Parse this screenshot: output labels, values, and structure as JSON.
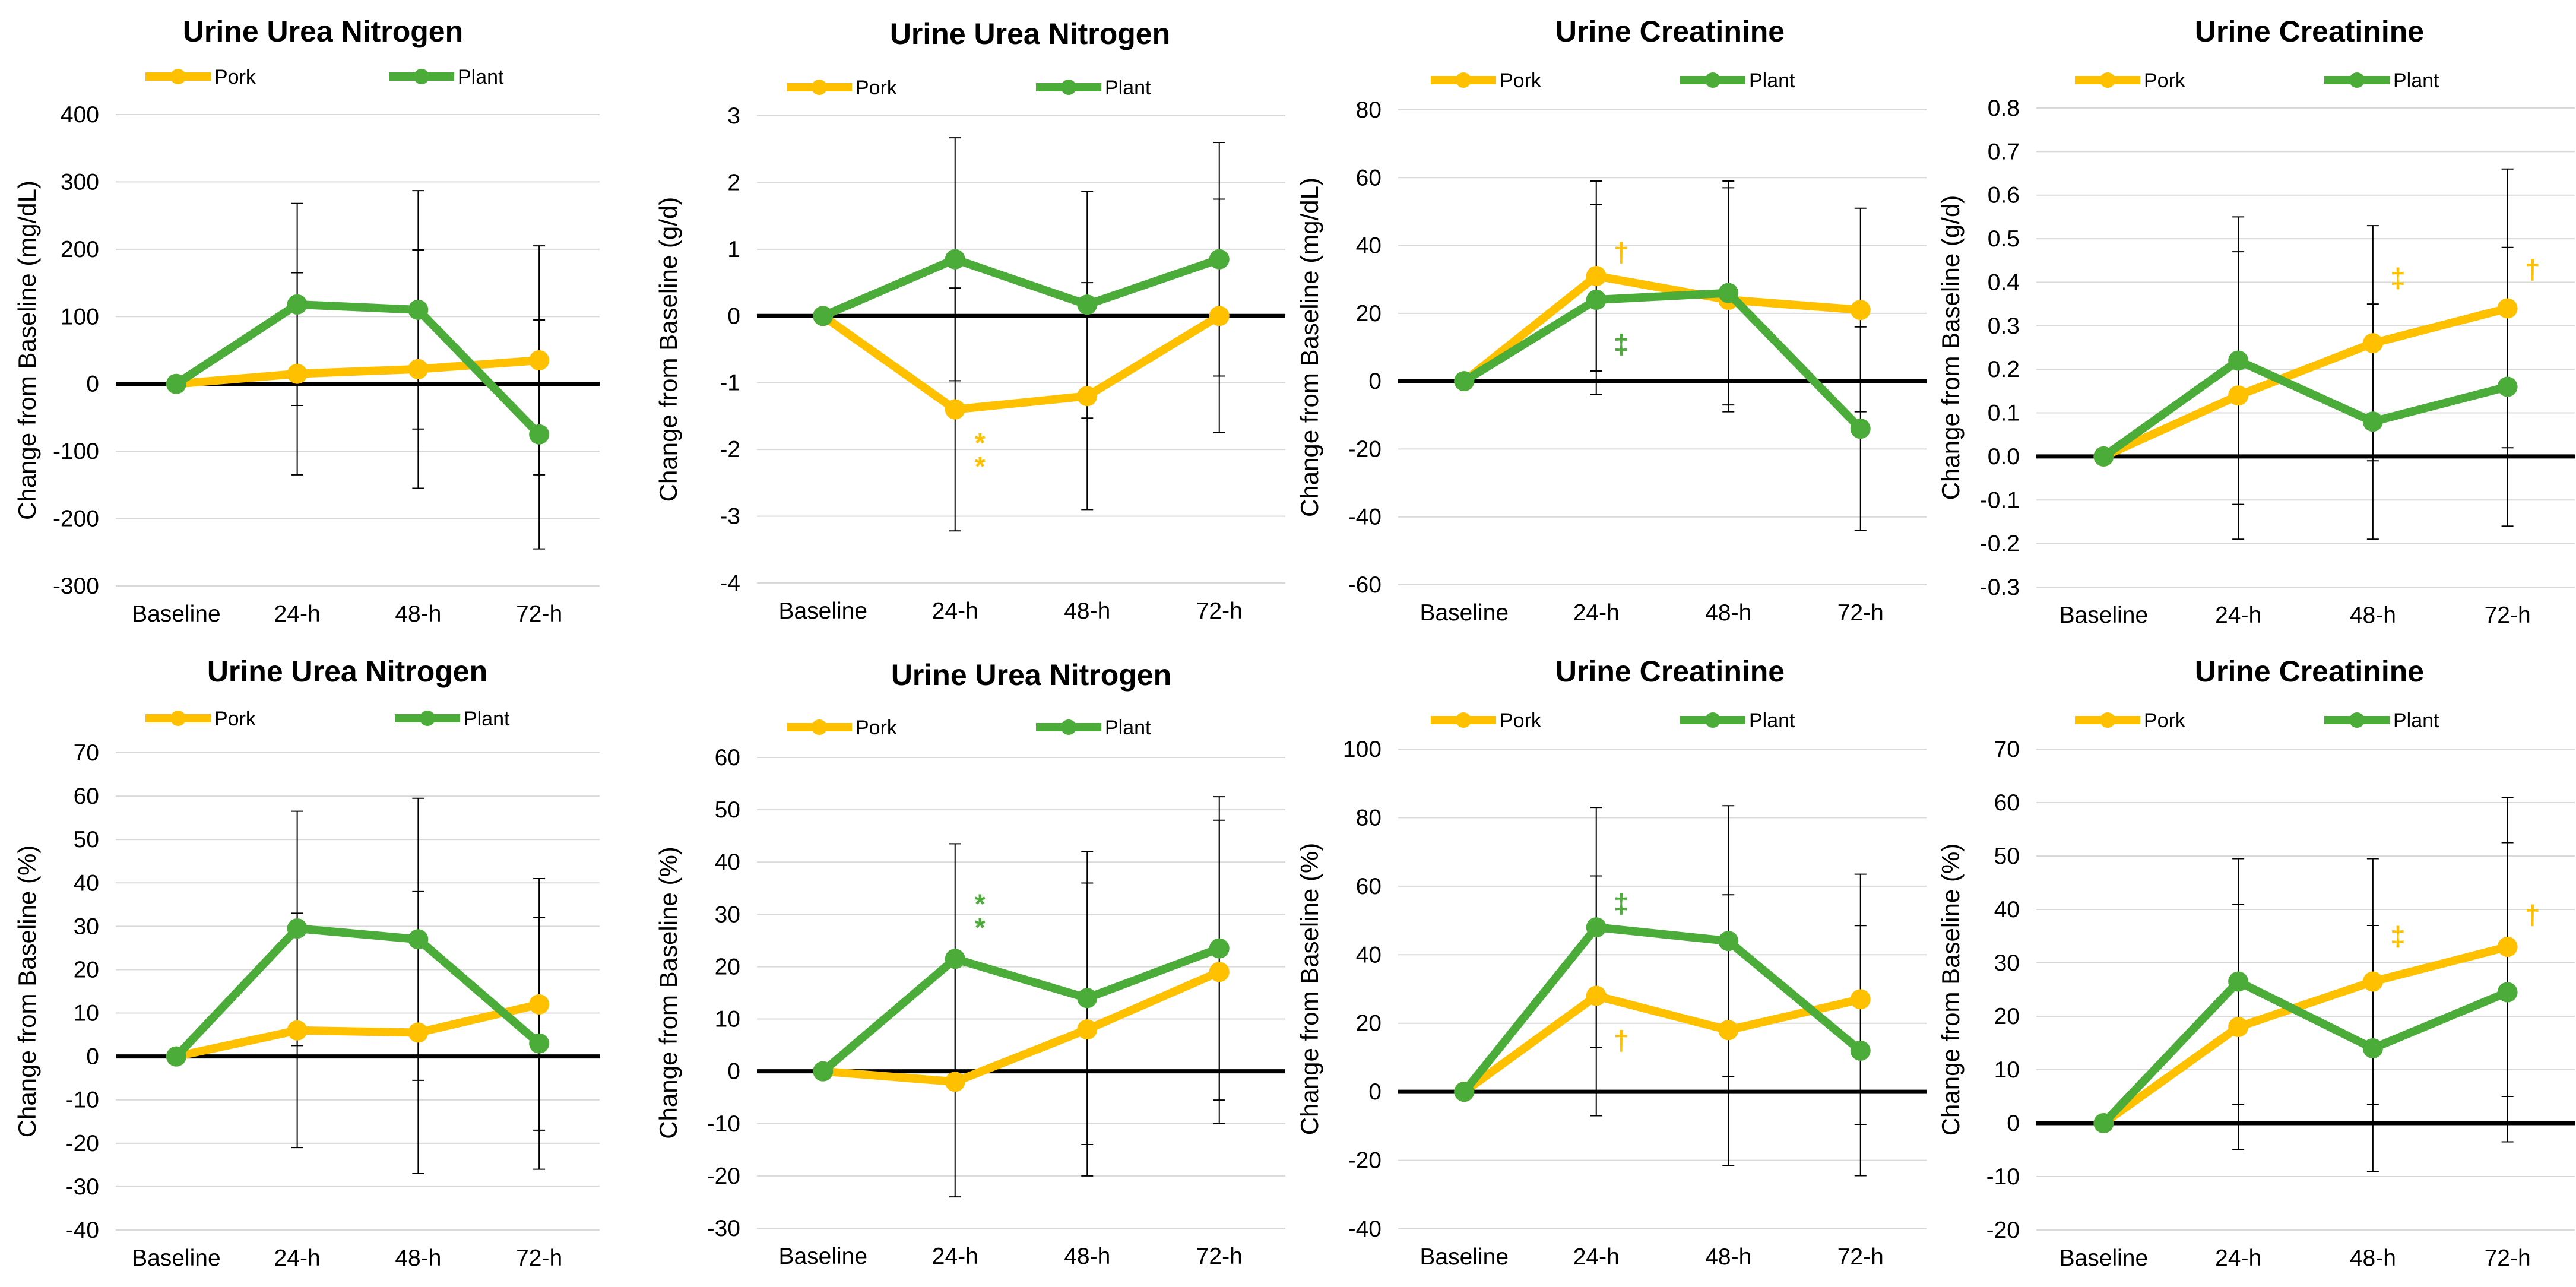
{
  "figure": {
    "colors": {
      "pork": "#FFC000",
      "plant": "#4CAC3A",
      "grid": "#D9D9D9",
      "errorbar": "#000000",
      "zero": "#000000"
    }
  },
  "chart_data": [
    {
      "type": "line",
      "title": "Urine Urea Nitrogen",
      "ylabel": "Change from Baseline (mg/dL)",
      "xlabel": "",
      "categories": [
        "Baseline",
        "24-h",
        "48-h",
        "72-h"
      ],
      "ylim": [
        -300,
        400
      ],
      "ystep": 100,
      "ytick_labels": [
        "-300",
        "-200",
        "-100",
        "0",
        "100",
        "200",
        "300",
        "400"
      ],
      "legend": [
        "Pork",
        "Plant"
      ],
      "series": [
        {
          "name": "Pork",
          "color": "#FFC000",
          "values": [
            0,
            15,
            22,
            35
          ],
          "error": [
            0,
            150,
            177,
            170
          ]
        },
        {
          "name": "Plant",
          "color": "#4CAC3A",
          "values": [
            0,
            118,
            110,
            -75
          ],
          "error": [
            0,
            150,
            177,
            170
          ]
        }
      ],
      "annotations": []
    },
    {
      "type": "line",
      "title": "Urine Urea Nitrogen",
      "ylabel": "Change from Baseline (g/d)",
      "xlabel": "",
      "categories": [
        "Baseline",
        "24-h",
        "48-h",
        "72-h"
      ],
      "ylim": [
        -4,
        3
      ],
      "ystep": 1,
      "ytick_labels": [
        "-4",
        "-3",
        "-2",
        "-1",
        "0",
        "1",
        "2",
        "3"
      ],
      "legend": [
        "Pork",
        "Plant"
      ],
      "series": [
        {
          "name": "Pork",
          "color": "#FFC000",
          "values": [
            0,
            -1.4,
            -1.2,
            0
          ],
          "error": [
            0,
            1.82,
            1.7,
            1.75
          ]
        },
        {
          "name": "Plant",
          "color": "#4CAC3A",
          "values": [
            0,
            0.85,
            0.17,
            0.85
          ],
          "error": [
            0,
            1.82,
            1.7,
            1.75
          ]
        }
      ],
      "annotations": [
        {
          "text": "*",
          "series": "Pork",
          "category": "24-h",
          "value": -1.9
        },
        {
          "text": "*",
          "series": "Pork",
          "category": "24-h",
          "value": -2.25
        }
      ]
    },
    {
      "type": "line",
      "title": "Urine Creatinine",
      "ylabel": "Change from Baseline (mg/dL)",
      "xlabel": "",
      "categories": [
        "Baseline",
        "24-h",
        "48-h",
        "72-h"
      ],
      "ylim": [
        -60,
        80
      ],
      "ystep": 20,
      "ytick_labels": [
        "-60",
        "-40",
        "-20",
        "0",
        "20",
        "40",
        "60",
        "80"
      ],
      "legend": [
        "Pork",
        "Plant"
      ],
      "series": [
        {
          "name": "Pork",
          "color": "#FFC000",
          "values": [
            0,
            31,
            24,
            21
          ],
          "error": [
            0,
            28,
            33,
            30
          ]
        },
        {
          "name": "Plant",
          "color": "#4CAC3A",
          "values": [
            0,
            24,
            26,
            -14
          ],
          "error": [
            0,
            28,
            33,
            30
          ]
        }
      ],
      "annotations": [
        {
          "text": "†",
          "series": "Pork",
          "category": "24-h",
          "value": 38
        },
        {
          "text": "‡",
          "series": "Plant",
          "category": "24-h",
          "value": 11
        }
      ]
    },
    {
      "type": "line",
      "title": "Urine Creatinine",
      "ylabel": "Change from Baseline (g/d)",
      "xlabel": "",
      "categories": [
        "Baseline",
        "24-h",
        "48-h",
        "72-h"
      ],
      "ylim": [
        -0.3,
        0.8
      ],
      "ystep": 0.1,
      "ytick_labels": [
        "-0.3",
        "-0.2",
        "-0.1",
        "0.0",
        "0.1",
        "0.2",
        "0.3",
        "0.4",
        "0.5",
        "0.6",
        "0.7",
        "0.8"
      ],
      "legend": [
        "Pork",
        "Plant"
      ],
      "series": [
        {
          "name": "Pork",
          "color": "#FFC000",
          "values": [
            0,
            0.14,
            0.26,
            0.34
          ],
          "error": [
            0,
            0.33,
            0.27,
            0.32
          ]
        },
        {
          "name": "Plant",
          "color": "#4CAC3A",
          "values": [
            0,
            0.22,
            0.08,
            0.16
          ],
          "error": [
            0,
            0.33,
            0.27,
            0.32
          ]
        }
      ],
      "annotations": [
        {
          "text": "‡",
          "series": "Pork",
          "category": "48-h",
          "value": 0.41
        },
        {
          "text": "†",
          "series": "Pork",
          "category": "72-h",
          "value": 0.43
        }
      ]
    },
    {
      "type": "line",
      "title": "Urine Urea Nitrogen",
      "ylabel": "Change from Baseline (%)",
      "xlabel": "",
      "categories": [
        "Baseline",
        "24-h",
        "48-h",
        "72-h"
      ],
      "ylim": [
        -40,
        70
      ],
      "ystep": 10,
      "ytick_labels": [
        "-40",
        "-30",
        "-20",
        "-10",
        "0",
        "10",
        "20",
        "30",
        "40",
        "50",
        "60",
        "70"
      ],
      "legend": [
        "Pork",
        "Plant"
      ],
      "series": [
        {
          "name": "Pork",
          "color": "#FFC000",
          "values": [
            0,
            6,
            5.5,
            12
          ],
          "error": [
            0,
            27,
            32.5,
            29
          ]
        },
        {
          "name": "Plant",
          "color": "#4CAC3A",
          "values": [
            0,
            29.5,
            27,
            3
          ],
          "error": [
            0,
            27,
            32.5,
            29
          ]
        }
      ],
      "annotations": []
    },
    {
      "type": "line",
      "title": "Urine Urea Nitrogen",
      "ylabel": "Change from Baseline (%)",
      "xlabel": "",
      "categories": [
        "Baseline",
        "24-h",
        "48-h",
        "72-h"
      ],
      "ylim": [
        -30,
        60
      ],
      "ystep": 10,
      "ytick_labels": [
        "-30",
        "-20",
        "-10",
        "0",
        "10",
        "20",
        "30",
        "40",
        "50",
        "60"
      ],
      "legend": [
        "Pork",
        "Plant"
      ],
      "series": [
        {
          "name": "Pork",
          "color": "#FFC000",
          "values": [
            0,
            -2,
            8,
            19
          ],
          "error": [
            0,
            22,
            28,
            29
          ]
        },
        {
          "name": "Plant",
          "color": "#4CAC3A",
          "values": [
            0,
            21.5,
            14,
            23.5
          ],
          "error": [
            0,
            22,
            28,
            29
          ]
        }
      ],
      "annotations": [
        {
          "text": "*",
          "series": "Plant",
          "category": "24-h",
          "value": 32
        },
        {
          "text": "*",
          "series": "Plant",
          "category": "24-h",
          "value": 27.5
        }
      ]
    },
    {
      "type": "line",
      "title": "Urine Creatinine",
      "ylabel": "Change from Baseline (%)",
      "xlabel": "",
      "categories": [
        "Baseline",
        "24-h",
        "48-h",
        "72-h"
      ],
      "ylim": [
        -40,
        100
      ],
      "ystep": 20,
      "ytick_labels": [
        "-40",
        "-20",
        "0",
        "20",
        "40",
        "60",
        "80",
        "100"
      ],
      "legend": [
        "Pork",
        "Plant"
      ],
      "series": [
        {
          "name": "Pork",
          "color": "#FFC000",
          "values": [
            0,
            28,
            18,
            27
          ],
          "error": [
            0,
            35,
            39.5,
            36.5
          ]
        },
        {
          "name": "Plant",
          "color": "#4CAC3A",
          "values": [
            0,
            48,
            44,
            12
          ],
          "error": [
            0,
            35,
            39.5,
            36.5
          ]
        }
      ],
      "annotations": [
        {
          "text": "‡",
          "series": "Plant",
          "category": "24-h",
          "value": 55
        },
        {
          "text": "†",
          "series": "Pork",
          "category": "24-h",
          "value": 15
        }
      ]
    },
    {
      "type": "line",
      "title": "Urine Creatinine",
      "ylabel": "Change from Baseline (%)",
      "xlabel": "",
      "categories": [
        "Baseline",
        "24-h",
        "48-h",
        "72-h"
      ],
      "ylim": [
        -20,
        70
      ],
      "ystep": 10,
      "ytick_labels": [
        "-20",
        "-10",
        "0",
        "10",
        "20",
        "30",
        "40",
        "50",
        "60",
        "70"
      ],
      "legend": [
        "Pork",
        "Plant"
      ],
      "series": [
        {
          "name": "Pork",
          "color": "#FFC000",
          "values": [
            0,
            18,
            26.5,
            33
          ],
          "error": [
            0,
            23,
            23,
            28
          ]
        },
        {
          "name": "Plant",
          "color": "#4CAC3A",
          "values": [
            0,
            26.5,
            14,
            24.5
          ],
          "error": [
            0,
            23,
            23,
            28
          ]
        }
      ],
      "annotations": [
        {
          "text": "‡",
          "series": "Pork",
          "category": "48-h",
          "value": 35
        },
        {
          "text": "†",
          "series": "Pork",
          "category": "72-h",
          "value": 39
        }
      ]
    }
  ]
}
